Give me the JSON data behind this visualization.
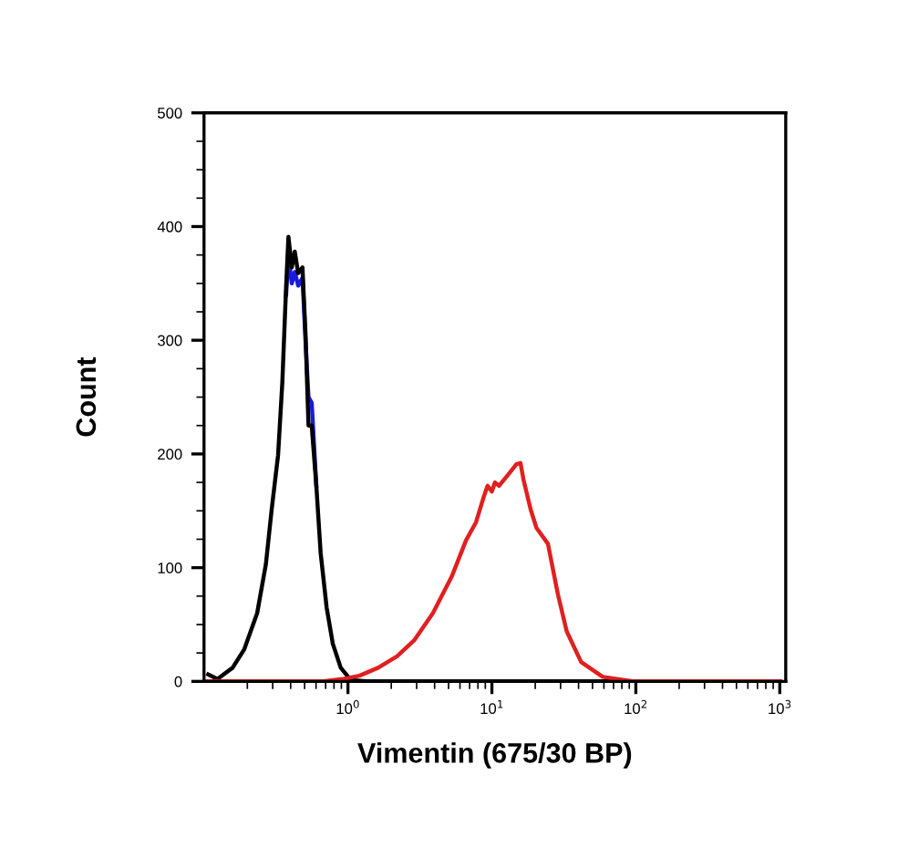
{
  "chart_data": {
    "type": "line",
    "xlabel": "Vimentin (675/30 BP)",
    "ylabel": "Count",
    "log": "x",
    "xlim": [
      0.1,
      1100
    ],
    "ylim": [
      0,
      500
    ],
    "xticks": [
      {
        "value": 1,
        "label": "10$^{0}$"
      },
      {
        "value": 10,
        "label": "10$^{1}$"
      },
      {
        "value": 100,
        "label": "10$^{2}$"
      },
      {
        "value": 1000,
        "label": "10$^{3}$"
      }
    ],
    "yticks": [
      0,
      100,
      200,
      300,
      400,
      500
    ],
    "grid": false,
    "legend": false,
    "marker": "none",
    "line_style": "solid",
    "series": [
      {
        "color": "#1a1adc",
        "x": [
          0.372,
          0.386,
          0.407,
          0.427,
          0.451,
          0.483,
          0.507,
          0.532,
          0.56,
          0.603
        ],
        "values": [
          340,
          375,
          350,
          360,
          348,
          355,
          300,
          250,
          245,
          172
        ]
      },
      {
        "color": "#000000",
        "x": [
          0.107,
          0.124,
          0.158,
          0.19,
          0.234,
          0.269,
          0.295,
          0.327,
          0.35,
          0.372,
          0.386,
          0.407,
          0.427,
          0.451,
          0.483,
          0.507,
          0.532,
          0.56,
          0.603,
          0.646,
          0.711,
          0.785,
          0.891,
          1.05,
          1.35,
          1000
        ],
        "values": [
          6,
          2,
          12,
          28,
          60,
          103,
          151,
          199,
          263,
          348,
          391,
          364,
          378,
          359,
          364,
          306,
          225,
          225,
          172,
          113,
          65,
          33,
          12,
          1,
          0,
          0
        ]
      },
      {
        "color": "#e02020",
        "x": [
          0.1,
          0.676,
          0.912,
          1.2,
          1.62,
          2.19,
          2.88,
          3.89,
          5.25,
          6.61,
          7.76,
          8.71,
          9.33,
          10,
          10.5,
          11.2,
          13.2,
          14.8,
          15.8,
          16.6,
          18.6,
          20.4,
          24.5,
          28.8,
          33.1,
          41.7,
          58.9,
          95.5,
          1000
        ],
        "values": [
          0,
          0,
          2,
          5,
          12,
          22,
          36,
          60,
          92,
          124,
          140,
          161,
          172,
          167,
          175,
          172,
          183,
          191,
          192,
          177,
          151,
          135,
          121,
          76,
          44,
          17,
          4,
          0,
          0
        ]
      }
    ]
  }
}
